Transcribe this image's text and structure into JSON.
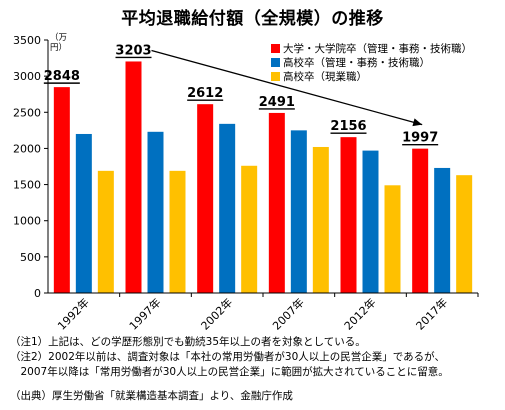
{
  "chart_data": {
    "type": "bar",
    "title": "平均退職給付額（全規模）の推移",
    "unit_label": [
      "（万",
      "円）"
    ],
    "categories": [
      "1992年",
      "1997年",
      "2002年",
      "2007年",
      "2012年",
      "2017年"
    ],
    "ylim": [
      0,
      3500
    ],
    "yticks": [
      0,
      500,
      1000,
      1500,
      2000,
      2500,
      3000,
      3500
    ],
    "series": [
      {
        "name": "大学・大学院卒（管理・事務・技術職）",
        "color": "#ff0000",
        "values": [
          2848,
          3203,
          2612,
          2491,
          2156,
          1997
        ]
      },
      {
        "name": "高校卒（管理・事務・技術職）",
        "color": "#0070c0",
        "values": [
          2200,
          2230,
          2340,
          2250,
          1970,
          1730
        ]
      },
      {
        "name": "高校卒（現業職）",
        "color": "#ffc000",
        "values": [
          1690,
          1690,
          1760,
          2020,
          1490,
          1630
        ]
      }
    ],
    "data_labels": [
      "2848",
      "3203",
      "2612",
      "2491",
      "2156",
      "1997"
    ],
    "grid": false,
    "legend_position": "top-right"
  },
  "notes": [
    "（注1）上記は、どの学歴形態別でも勤続35年以上の者を対象としている。",
    "（注2）2002年以前は、調査対象は「本社の常用労働者が30人以上の民営企業」であるが、",
    "　2007年以降は「常用労働者が30人以上の民営企業」に範囲が拡大されていることに留意。"
  ],
  "source": "（出典）厚生労働省「就業構造基本調査」より、金融庁作成"
}
